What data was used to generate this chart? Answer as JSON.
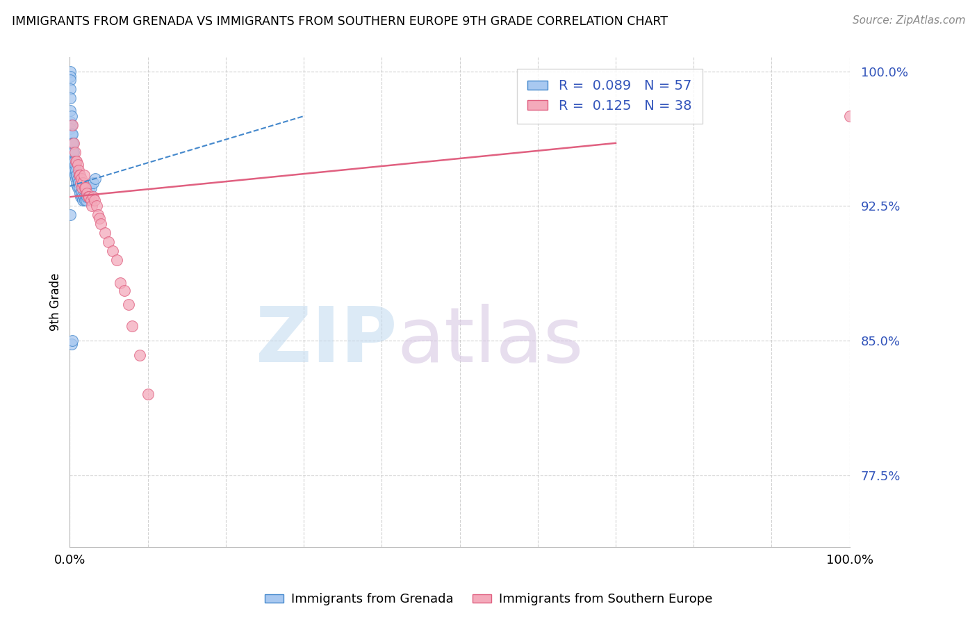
{
  "title": "IMMIGRANTS FROM GRENADA VS IMMIGRANTS FROM SOUTHERN EUROPE 9TH GRADE CORRELATION CHART",
  "source": "Source: ZipAtlas.com",
  "ylabel": "9th Grade",
  "xlim": [
    0.0,
    1.0
  ],
  "ylim": [
    0.735,
    1.008
  ],
  "yticks": [
    0.775,
    0.85,
    0.925,
    1.0
  ],
  "ytick_labels": [
    "77.5%",
    "85.0%",
    "92.5%",
    "100.0%"
  ],
  "R_grenada": 0.089,
  "N_grenada": 57,
  "R_southern": 0.125,
  "N_southern": 38,
  "color_grenada": "#A8C8F0",
  "color_southern": "#F4AABB",
  "line_color_grenada": "#4488CC",
  "line_color_southern": "#E06080",
  "legend_label_grenada": "Immigrants from Grenada",
  "legend_label_southern": "Immigrants from Southern Europe",
  "grenada_x": [
    0.0005,
    0.0005,
    0.001,
    0.001,
    0.001,
    0.001,
    0.001,
    0.001,
    0.002,
    0.002,
    0.002,
    0.002,
    0.002,
    0.002,
    0.002,
    0.003,
    0.003,
    0.003,
    0.003,
    0.003,
    0.004,
    0.004,
    0.004,
    0.004,
    0.005,
    0.005,
    0.005,
    0.006,
    0.006,
    0.007,
    0.007,
    0.008,
    0.008,
    0.009,
    0.009,
    0.01,
    0.01,
    0.011,
    0.012,
    0.013,
    0.014,
    0.015,
    0.016,
    0.017,
    0.018,
    0.019,
    0.02,
    0.021,
    0.022,
    0.023,
    0.025,
    0.027,
    0.03,
    0.033,
    0.001,
    0.002,
    0.003
  ],
  "grenada_y": [
    1.0,
    0.997,
    0.995,
    0.99,
    0.985,
    0.978,
    0.972,
    0.968,
    0.975,
    0.97,
    0.965,
    0.96,
    0.955,
    0.95,
    0.945,
    0.965,
    0.96,
    0.955,
    0.95,
    0.945,
    0.96,
    0.955,
    0.95,
    0.945,
    0.955,
    0.95,
    0.945,
    0.95,
    0.945,
    0.948,
    0.942,
    0.945,
    0.94,
    0.942,
    0.937,
    0.94,
    0.935,
    0.938,
    0.935,
    0.932,
    0.93,
    0.932,
    0.93,
    0.928,
    0.93,
    0.928,
    0.93,
    0.928,
    0.93,
    0.932,
    0.935,
    0.935,
    0.938,
    0.94,
    0.92,
    0.848,
    0.85
  ],
  "southern_x": [
    0.003,
    0.005,
    0.007,
    0.008,
    0.009,
    0.01,
    0.011,
    0.012,
    0.013,
    0.014,
    0.015,
    0.016,
    0.017,
    0.018,
    0.019,
    0.02,
    0.022,
    0.024,
    0.025,
    0.027,
    0.028,
    0.03,
    0.032,
    0.034,
    0.036,
    0.038,
    0.04,
    0.045,
    0.05,
    0.055,
    0.06,
    0.065,
    0.07,
    0.075,
    0.08,
    0.09,
    0.1,
    1.0
  ],
  "southern_y": [
    0.97,
    0.96,
    0.955,
    0.95,
    0.95,
    0.948,
    0.945,
    0.942,
    0.942,
    0.938,
    0.94,
    0.935,
    0.938,
    0.942,
    0.935,
    0.935,
    0.932,
    0.93,
    0.93,
    0.928,
    0.925,
    0.93,
    0.928,
    0.925,
    0.92,
    0.918,
    0.915,
    0.91,
    0.905,
    0.9,
    0.895,
    0.882,
    0.878,
    0.87,
    0.858,
    0.842,
    0.82,
    0.975
  ],
  "grenada_trendline_x": [
    0.0,
    0.3
  ],
  "grenada_trendline_y": [
    0.936,
    0.975
  ],
  "southern_trendline_x": [
    0.0,
    0.7
  ],
  "southern_trendline_y": [
    0.93,
    0.96
  ]
}
